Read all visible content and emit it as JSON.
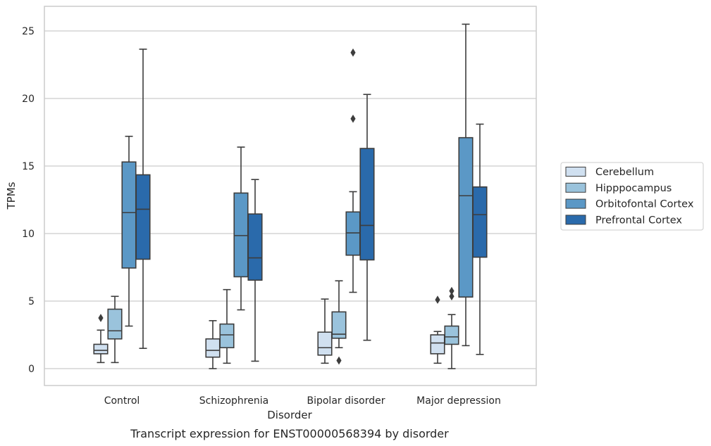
{
  "chart_data": {
    "type": "box",
    "caption": "Transcript expression for ENST00000568394 by disorder",
    "xlabel": "Disorder",
    "ylabel": "TPMs",
    "ylim": [
      -1.2,
      26.8
    ],
    "yticks": [
      0,
      5,
      10,
      15,
      20,
      25
    ],
    "grid": "horizontal",
    "legend_position": "right",
    "categories": [
      "Control",
      "Schizophrenia",
      "Bipolar disorder",
      "Major depression"
    ],
    "series": [
      {
        "name": "Cerebellum",
        "color": "#d0e0f0",
        "boxes": [
          {
            "q1": 1.1,
            "median": 1.35,
            "q3": 1.8,
            "whisker_low": 0.45,
            "whisker_high": 2.85,
            "outliers": [
              3.75
            ]
          },
          {
            "q1": 0.85,
            "median": 1.35,
            "q3": 2.2,
            "whisker_low": 0.0,
            "whisker_high": 3.55,
            "outliers": []
          },
          {
            "q1": 1.0,
            "median": 1.55,
            "q3": 2.7,
            "whisker_low": 0.4,
            "whisker_high": 5.15,
            "outliers": []
          },
          {
            "q1": 1.1,
            "median": 1.9,
            "q3": 2.5,
            "whisker_low": 0.4,
            "whisker_high": 2.75,
            "outliers": [
              5.1
            ]
          }
        ]
      },
      {
        "name": "Hipppocampus",
        "color": "#9ac3dc",
        "boxes": [
          {
            "q1": 2.2,
            "median": 2.8,
            "q3": 4.4,
            "whisker_low": 0.45,
            "whisker_high": 5.35,
            "outliers": []
          },
          {
            "q1": 1.55,
            "median": 2.5,
            "q3": 3.3,
            "whisker_low": 0.4,
            "whisker_high": 5.85,
            "outliers": []
          },
          {
            "q1": 2.25,
            "median": 2.55,
            "q3": 4.2,
            "whisker_low": 1.55,
            "whisker_high": 6.5,
            "outliers": [
              0.6
            ]
          },
          {
            "q1": 1.8,
            "median": 2.35,
            "q3": 3.15,
            "whisker_low": 0.0,
            "whisker_high": 4.0,
            "outliers": [
              5.35,
              5.75
            ]
          }
        ]
      },
      {
        "name": "Orbitofontal Cortex",
        "color": "#5b98c6",
        "boxes": [
          {
            "q1": 7.45,
            "median": 11.55,
            "q3": 15.3,
            "whisker_low": 3.15,
            "whisker_high": 17.2,
            "outliers": []
          },
          {
            "q1": 6.8,
            "median": 9.85,
            "q3": 13.0,
            "whisker_low": 4.35,
            "whisker_high": 16.4,
            "outliers": []
          },
          {
            "q1": 8.4,
            "median": 10.05,
            "q3": 11.6,
            "whisker_low": 5.65,
            "whisker_high": 13.1,
            "outliers": [
              18.5,
              23.4
            ]
          },
          {
            "q1": 5.3,
            "median": 12.8,
            "q3": 17.1,
            "whisker_low": 1.7,
            "whisker_high": 25.5,
            "outliers": []
          }
        ]
      },
      {
        "name": "Prefrontal Cortex",
        "color": "#2a6aab",
        "boxes": [
          {
            "q1": 8.1,
            "median": 11.8,
            "q3": 14.35,
            "whisker_low": 1.5,
            "whisker_high": 23.65,
            "outliers": []
          },
          {
            "q1": 6.55,
            "median": 8.2,
            "q3": 11.45,
            "whisker_low": 0.55,
            "whisker_high": 14.0,
            "outliers": []
          },
          {
            "q1": 8.05,
            "median": 10.6,
            "q3": 16.3,
            "whisker_low": 2.1,
            "whisker_high": 20.3,
            "outliers": []
          },
          {
            "q1": 8.25,
            "median": 11.4,
            "q3": 13.45,
            "whisker_low": 1.05,
            "whisker_high": 18.1,
            "outliers": []
          }
        ]
      }
    ]
  }
}
